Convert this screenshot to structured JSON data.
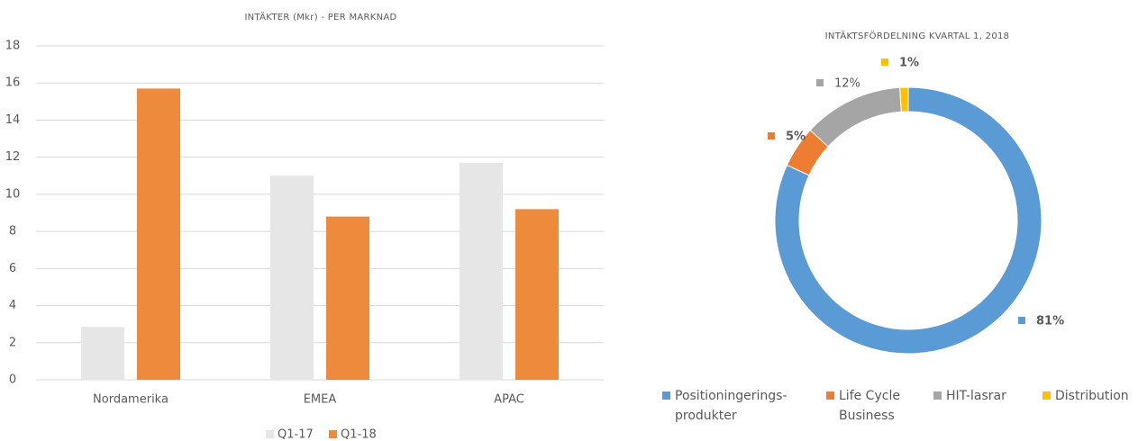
{
  "chart_data": [
    {
      "type": "bar",
      "title": "INTÄKTER (Mkr) - PER MARKNAD",
      "categories": [
        "Nordamerika",
        "EMEA",
        "APAC"
      ],
      "series": [
        {
          "name": "Q1-17",
          "color": "#e7e6e6",
          "values": [
            2.85,
            11,
            11.7
          ]
        },
        {
          "name": "Q1-18",
          "color": "#ed8a3c",
          "values": [
            15.7,
            8.8,
            9.2
          ]
        }
      ],
      "ylim": [
        0,
        18
      ],
      "yticks": [
        0,
        2,
        4,
        6,
        8,
        10,
        12,
        14,
        16,
        18
      ],
      "grid": true,
      "legend": "bottom"
    },
    {
      "type": "donut",
      "title": "INTÄKTSFÖRDELNING  KVARTAL 1, 2018",
      "categories": [
        "Positioningerings-produkter",
        "Life Cycle Business",
        "HIT-lasrar",
        "Distribution"
      ],
      "values": [
        81,
        5,
        12,
        1
      ],
      "value_labels": [
        "81%",
        "5%",
        "12%",
        "1%"
      ],
      "colors": [
        "#5b9bd5",
        "#ed7d31",
        "#a5a5a5",
        "#ffc000"
      ],
      "legend": "bottom"
    }
  ]
}
